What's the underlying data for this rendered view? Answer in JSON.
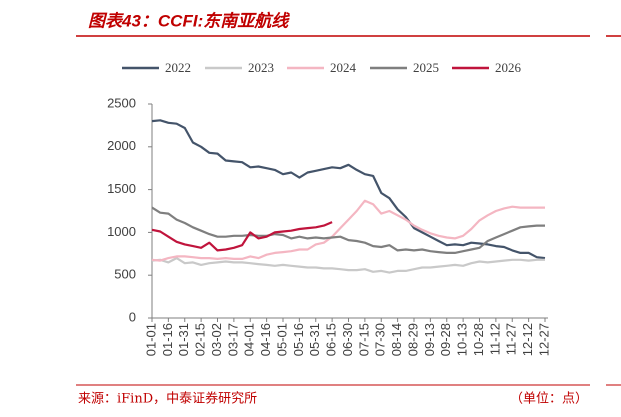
{
  "chart_data": {
    "type": "line",
    "title": "图表43：CCFI:东南亚航线",
    "source": "来源：iFinD，中泰证券研究所",
    "unit": "（单位：点）",
    "categories": [
      "01-01",
      null,
      "01-16",
      null,
      "01-31",
      null,
      "02-15",
      null,
      "03-02",
      null,
      "03-17",
      null,
      "04-01",
      null,
      "04-16",
      null,
      "05-01",
      null,
      "05-16",
      null,
      "05-31",
      null,
      "06-15",
      null,
      "06-30",
      null,
      "07-15",
      null,
      "07-30",
      null,
      "08-14",
      null,
      "08-29",
      null,
      "09-13",
      null,
      "09-28",
      null,
      "10-13",
      null,
      "10-28",
      null,
      "11-12",
      null,
      "11-27",
      null,
      "12-12",
      null,
      "12-27"
    ],
    "series": [
      {
        "name": "2022",
        "color": "#44546a",
        "values": [
          2300,
          2310,
          2280,
          2270,
          2220,
          2050,
          2000,
          1930,
          1920,
          1840,
          1830,
          1820,
          1760,
          1770,
          1750,
          1730,
          1680,
          1700,
          1640,
          1700,
          1720,
          1740,
          1760,
          1750,
          1790,
          1730,
          1680,
          1660,
          1460,
          1400,
          1270,
          1180,
          1050,
          1000,
          950,
          900,
          850,
          860,
          850,
          880,
          870,
          860,
          840,
          830,
          790,
          760,
          760,
          710,
          700
        ]
      },
      {
        "name": "2023",
        "color": "#c9c9c9",
        "values": [
          670,
          680,
          650,
          700,
          640,
          650,
          620,
          640,
          650,
          660,
          650,
          650,
          640,
          630,
          620,
          610,
          620,
          610,
          600,
          590,
          590,
          580,
          580,
          570,
          560,
          560,
          570,
          540,
          550,
          530,
          550,
          550,
          570,
          590,
          590,
          600,
          610,
          620,
          610,
          640,
          660,
          650,
          660,
          670,
          680,
          680,
          670,
          680,
          680
        ]
      },
      {
        "name": "2024",
        "color": "#f4b6c2",
        "values": [
          680,
          670,
          700,
          720,
          720,
          710,
          700,
          700,
          690,
          700,
          690,
          690,
          720,
          700,
          740,
          760,
          770,
          780,
          800,
          800,
          860,
          880,
          950,
          1050,
          1150,
          1250,
          1370,
          1330,
          1220,
          1250,
          1200,
          1150,
          1080,
          1030,
          990,
          960,
          940,
          930,
          960,
          1040,
          1140,
          1200,
          1250,
          1280,
          1300,
          1290,
          1290,
          1290,
          1290
        ]
      },
      {
        "name": "2025",
        "color": "#7f7f7f",
        "values": [
          1290,
          1230,
          1220,
          1150,
          1110,
          1060,
          1020,
          980,
          950,
          950,
          960,
          960,
          970,
          960,
          960,
          980,
          970,
          930,
          950,
          930,
          940,
          930,
          940,
          950,
          910,
          900,
          880,
          840,
          830,
          850,
          790,
          800,
          790,
          800,
          780,
          770,
          760,
          760,
          780,
          800,
          820,
          900,
          940,
          980,
          1020,
          1060,
          1070,
          1080,
          1080
        ]
      },
      {
        "name": "2026",
        "color": "#c0143c",
        "values": [
          1030,
          1010,
          950,
          890,
          860,
          840,
          820,
          880,
          790,
          800,
          820,
          850,
          1000,
          930,
          950,
          1000,
          1010,
          1020,
          1040,
          1050,
          1060,
          1080,
          1120,
          null,
          null,
          null,
          null,
          null,
          null,
          null,
          null,
          null,
          null,
          null,
          null,
          null,
          null,
          null,
          null,
          null,
          null,
          null,
          null,
          null,
          null,
          null,
          null,
          null,
          null
        ]
      }
    ],
    "ylim": [
      0,
      2500
    ],
    "yticks": [
      0,
      500,
      1000,
      1500,
      2000,
      2500
    ],
    "grid": false
  }
}
